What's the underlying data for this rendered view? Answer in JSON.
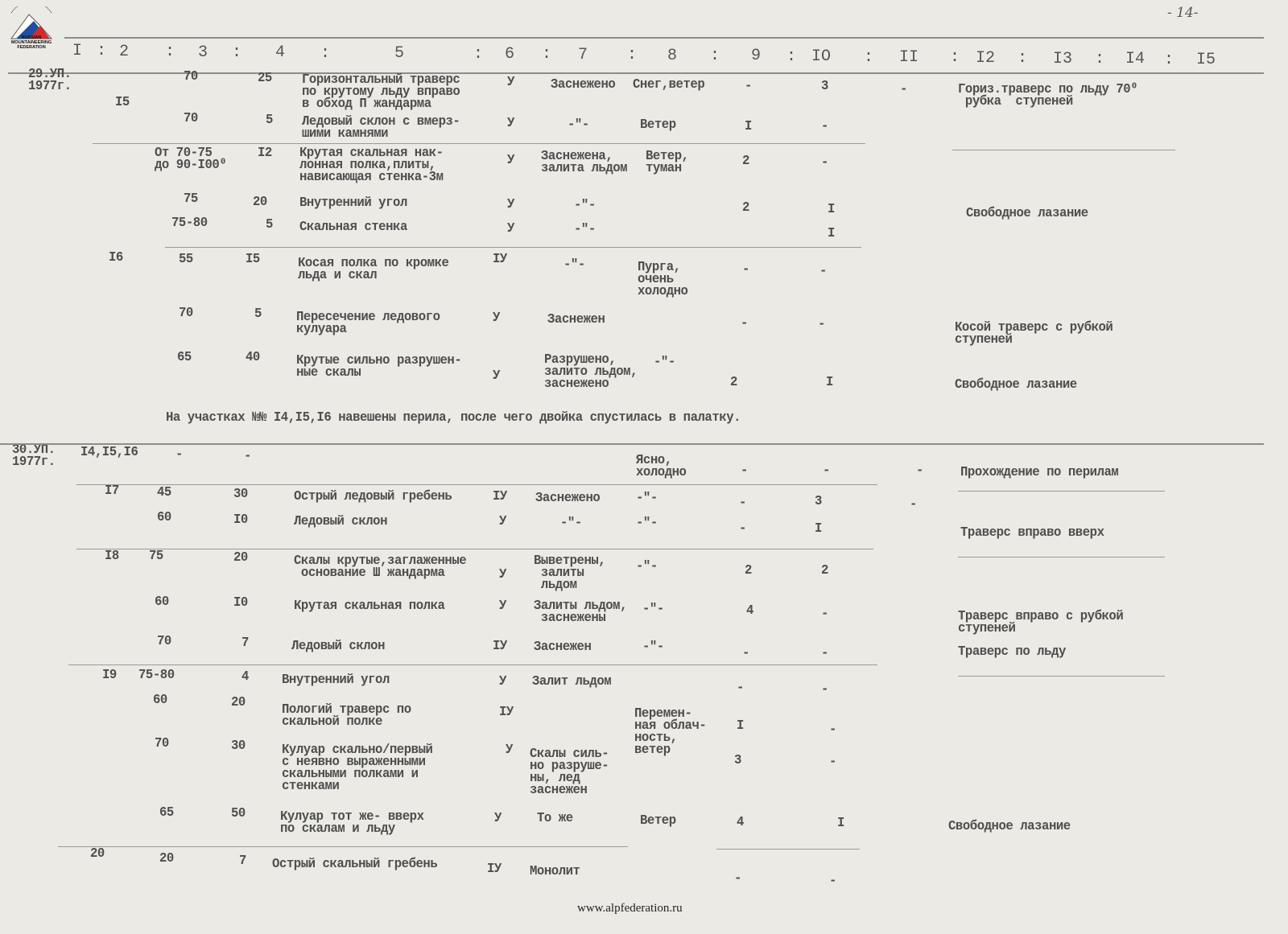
{
  "header": {
    "page_number": "- 14-",
    "columns": [
      "I",
      "2",
      "3",
      "4",
      "5",
      "6",
      "7",
      "8",
      "9",
      "10",
      "11",
      "12",
      "13",
      "14",
      "15"
    ],
    "columns_display": [
      "I",
      ":",
      "2",
      ":",
      "3",
      ":",
      "4",
      ":",
      "5",
      ":",
      "6",
      ":",
      "7",
      ":",
      "8",
      ":",
      "9",
      ":",
      "IO",
      ":",
      "II",
      ":",
      "I2",
      ":",
      "I3",
      ":",
      "I4",
      ":",
      "I5"
    ]
  },
  "logo": {
    "text": "RUSSIAN\nMOUNTAINEERING\nFEDERATION",
    "arc_text": "ФЕДЕРАЦИЯ АЛЬПИНИЗМА РОССИИ",
    "colors": [
      "#1f4fa3",
      "#d42a2a",
      "#ffffff"
    ]
  },
  "rows": [
    {
      "date": "29.УП.\n1977г.",
      "angle": "70",
      "length": "25",
      "description": "Горизонтальный траверс\nпо крутому льду вправо\nв обход П жандарма",
      "difficulty": "У",
      "relief": "Заснежено",
      "weather": "Снег,ветер",
      "col9": "-",
      "col10": "3",
      "col11": "-",
      "notes": "Гориз.траверс по льду 70⁰\n рубка  ступеней"
    },
    {
      "section": "I5",
      "angle": "70",
      "length": "5",
      "description": "Ледовый склон с вмерз-\nшими камнями",
      "difficulty": "У",
      "relief": "-\"-",
      "weather": "Ветер",
      "col9": "I",
      "col10": "-"
    },
    {
      "angle": "От 70-75\nдо 90-I00⁰",
      "length": "I2",
      "description": "Крутая скальная нак-\nлонная полка,плиты,\nнависающая стенка-3м",
      "difficulty": "У",
      "relief": "Заснежена,\nзалита льдом",
      "weather": "Ветер,\nтуман",
      "col9": "2",
      "col10": "-"
    },
    {
      "angle": "75",
      "length": "20",
      "description": "Внутренний угол",
      "difficulty": "У",
      "relief": "-\"-",
      "col9": "2",
      "col10": "I",
      "notes": "Свободное лазание"
    },
    {
      "angle": "75-80",
      "length": "5",
      "description": "Скальная стенка",
      "difficulty": "У",
      "relief": "-\"-",
      "col10": "I"
    },
    {
      "section": "I6",
      "angle": "55",
      "length": "I5",
      "description": "Косая полка по кромке\nльда и скал",
      "difficulty": "IУ",
      "relief": "-\"-",
      "weather": "Пурга,\nочень\nхолодно",
      "col9": "-",
      "col10": "-"
    },
    {
      "angle": "70",
      "length": "5",
      "description": "Пересечение ледового\nкулуара",
      "difficulty": "У",
      "relief": "Заснежен",
      "col9": "-",
      "col10": "-",
      "notes": "Косой траверс с рубкой\nступеней"
    },
    {
      "angle": "65",
      "length": "40",
      "description": "Крутые сильно разрушен-\nные скалы",
      "difficulty": "У",
      "relief": "Разрушено,\nзалито льдом,\nзаснежено",
      "weather": "-\"-",
      "col9": "2",
      "col10": "I",
      "notes": "Свободное лазание"
    },
    {
      "date": "30.УП.\n1977г.",
      "section": "I4,I5,I6",
      "angle": "-",
      "length": "-",
      "weather": "Ясно,\nхолодно",
      "col9": "-",
      "col10": "-",
      "col11": "-",
      "notes": "Прохождение по перилам"
    },
    {
      "section": "I7",
      "angle": "45",
      "length": "30",
      "description": "Острый ледовый гребень",
      "difficulty": "IУ",
      "relief": "Заснежено",
      "weather": "-\"-",
      "col9": "-",
      "col10": "3",
      "col11": "-"
    },
    {
      "angle": "60",
      "length": "I0",
      "description": "Ледовый склон",
      "difficulty": "У",
      "relief": "-\"-",
      "weather": "-\"-",
      "col9": "-",
      "col10": "I",
      "notes": "Траверс вправо вверх"
    },
    {
      "section": "I8",
      "angle": "75",
      "length": "20",
      "description": "Скалы крутые,заглаженные\n основание Ш жандарма",
      "difficulty": "У",
      "relief": "Выветрены,\n залиты\n льдом",
      "weather": "-\"-",
      "col9": "2",
      "col10": "2"
    },
    {
      "angle": "60",
      "length": "I0",
      "description": "Крутая скальная полка",
      "difficulty": "У",
      "relief": "Залиты льдом,\n заснежены",
      "weather": "-\"-",
      "col9": "4",
      "col10": "-",
      "notes": "Траверс вправо с рубкой\nступеней"
    },
    {
      "angle": "70",
      "length": "7",
      "description": "Ледовый склон",
      "difficulty": "IУ",
      "relief": "Заснежен",
      "weather": "-\"-",
      "col9": "-",
      "col10": "-",
      "notes": "Траверс по льду"
    },
    {
      "section": "I9",
      "angle": "75-80",
      "length": "4",
      "description": "Внутренний угол",
      "difficulty": "У",
      "relief": "Залит льдом",
      "col9": "-",
      "col10": "-"
    },
    {
      "angle": "60",
      "length": "20",
      "description": "Пологий траверс по\nскальной полке",
      "difficulty": "IУ",
      "weather": "Перемен-\nная облач-\nность,\nветер",
      "col9": "I",
      "col10": "-"
    },
    {
      "angle": "70",
      "length": "30",
      "description": "Кулуар скально/первый\nс неявно выраженными\nскальными полками и\nстенками",
      "difficulty": "У",
      "relief": "Скалы силь-\nно разруше-\nны, лед\nзаснежен",
      "col9": "3",
      "col10": "-"
    },
    {
      "angle": "65",
      "length": "50",
      "description": "Кулуар тот же- вверх\nпо скалам и льду",
      "difficulty": "У",
      "relief": "То же",
      "weather": "Ветер",
      "col9": "4",
      "col10": "I",
      "notes": "Свободное лазание"
    },
    {
      "section": "20",
      "angle": "20",
      "length": "7",
      "description": "Острый скальный гребень",
      "difficulty": "IУ",
      "relief": "Монолит",
      "col9": "-",
      "col10": "-"
    }
  ],
  "remark": "На участках №№ I4,I5,I6 навешены перила, после чего двойка спустилась в палатку.",
  "footer": "www.alpfederation.ru"
}
